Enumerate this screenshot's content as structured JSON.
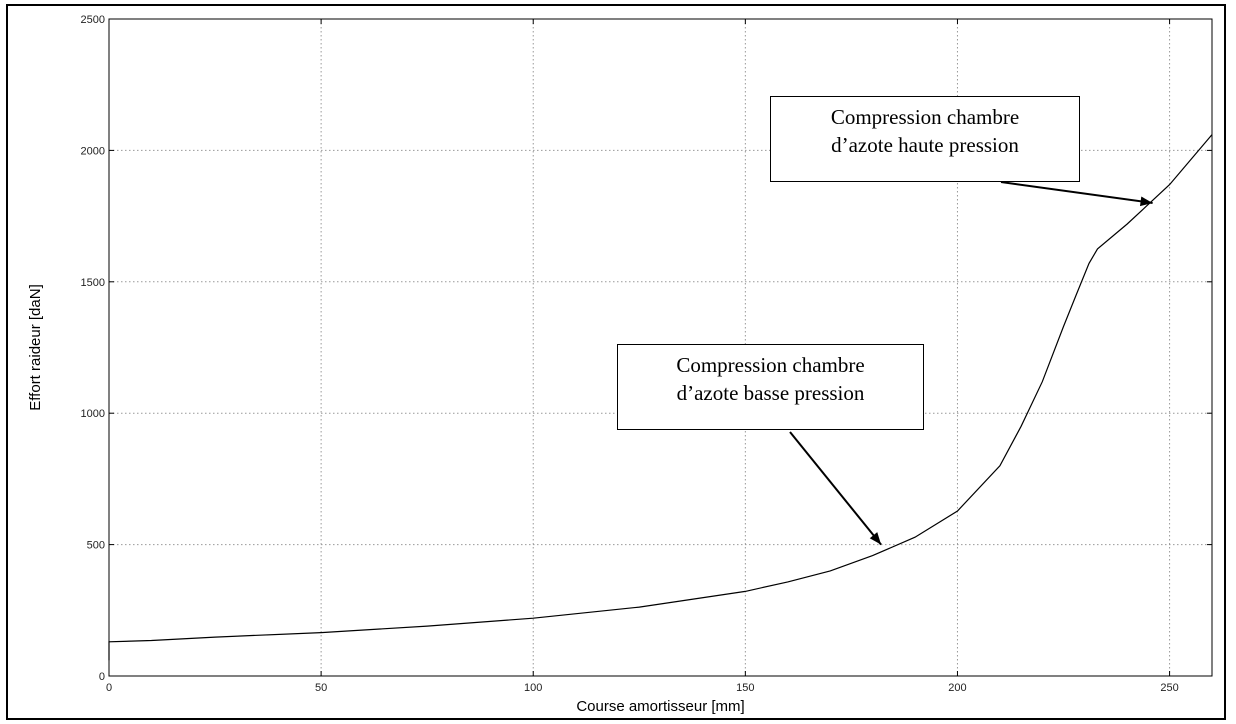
{
  "chart_data": {
    "type": "line",
    "title": "",
    "xlabel": "Course amortisseur [mm]",
    "ylabel": "Effort raideur [daN]",
    "xlim": [
      0,
      260
    ],
    "ylim": [
      0,
      2500
    ],
    "xticks": [
      0,
      50,
      100,
      150,
      200,
      250
    ],
    "yticks": [
      0,
      500,
      1000,
      1500,
      2000,
      2500
    ],
    "grid": true,
    "series": [
      {
        "color": "#000000",
        "x": [
          0,
          0,
          10,
          25,
          50,
          75,
          100,
          125,
          150,
          160,
          170,
          180,
          190,
          200,
          210,
          215,
          220,
          225,
          228,
          231,
          233,
          240,
          250,
          260
        ],
        "y": [
          60,
          130,
          135,
          148,
          165,
          190,
          220,
          262,
          322,
          358,
          400,
          458,
          528,
          628,
          800,
          950,
          1120,
          1330,
          1450,
          1570,
          1625,
          1720,
          1870,
          2060
        ]
      }
    ],
    "annotations": [
      {
        "lines": [
          "Compression chambre",
          "d’azote haute pression"
        ],
        "arrow_to": [
          246,
          1800
        ]
      },
      {
        "lines": [
          "Compression chambre",
          "d’azote basse pression"
        ],
        "arrow_to": [
          182,
          500
        ]
      }
    ]
  }
}
